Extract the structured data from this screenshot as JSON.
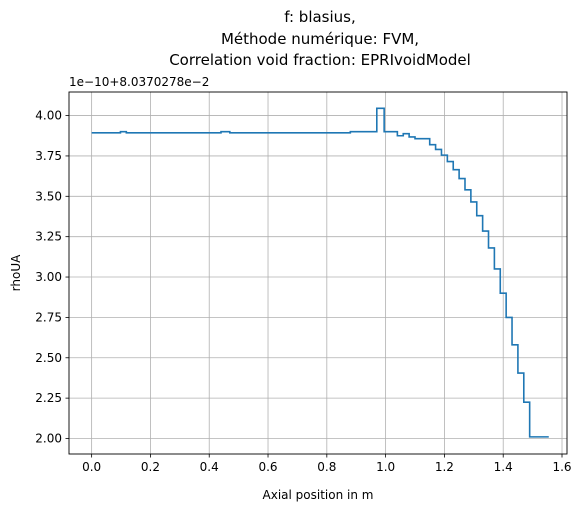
{
  "chart_data": {
    "type": "line",
    "drawstyle": "steps-post",
    "title_lines": [
      "f: blasius,",
      "Méthode numérique: FVM,",
      "Correlation void fraction: EPRIvoidModel"
    ],
    "xlabel": "Axial position in m",
    "ylabel": "rhoUA",
    "offset_text": "1e−10+8.0370278e−2",
    "xlim": [
      -0.077,
      1.617
    ],
    "ylim": [
      1.904,
      4.146
    ],
    "xticks": [
      0.0,
      0.2,
      0.4,
      0.6,
      0.8,
      1.0,
      1.2,
      1.4,
      1.6
    ],
    "xtick_labels": [
      "0.0",
      "0.2",
      "0.4",
      "0.6",
      "0.8",
      "1.0",
      "1.2",
      "1.4",
      "1.6"
    ],
    "yticks": [
      2.0,
      2.25,
      2.5,
      2.75,
      3.0,
      3.25,
      3.5,
      3.75,
      4.0
    ],
    "ytick_labels": [
      "2.00",
      "2.25",
      "2.50",
      "2.75",
      "3.00",
      "3.25",
      "3.50",
      "3.75",
      "4.00"
    ],
    "grid": true,
    "series": [
      {
        "color": "#1f77b4",
        "x": [
          0.0,
          0.098,
          0.118,
          0.44,
          0.47,
          0.88,
          0.97,
          0.995,
          1.04,
          1.06,
          1.08,
          1.1,
          1.13,
          1.15,
          1.17,
          1.19,
          1.21,
          1.23,
          1.25,
          1.27,
          1.29,
          1.31,
          1.33,
          1.35,
          1.37,
          1.39,
          1.41,
          1.43,
          1.45,
          1.47,
          1.49,
          1.51,
          1.535,
          1.555
        ],
        "y": [
          3.893,
          3.9,
          3.893,
          3.9,
          3.893,
          3.9,
          4.045,
          3.9,
          3.875,
          3.888,
          3.868,
          3.857,
          3.857,
          3.82,
          3.79,
          3.755,
          3.715,
          3.665,
          3.61,
          3.54,
          3.465,
          3.38,
          3.285,
          3.18,
          3.05,
          2.9,
          2.75,
          2.58,
          2.405,
          2.225,
          2.01,
          2.01,
          2.01,
          2.01
        ]
      }
    ]
  }
}
